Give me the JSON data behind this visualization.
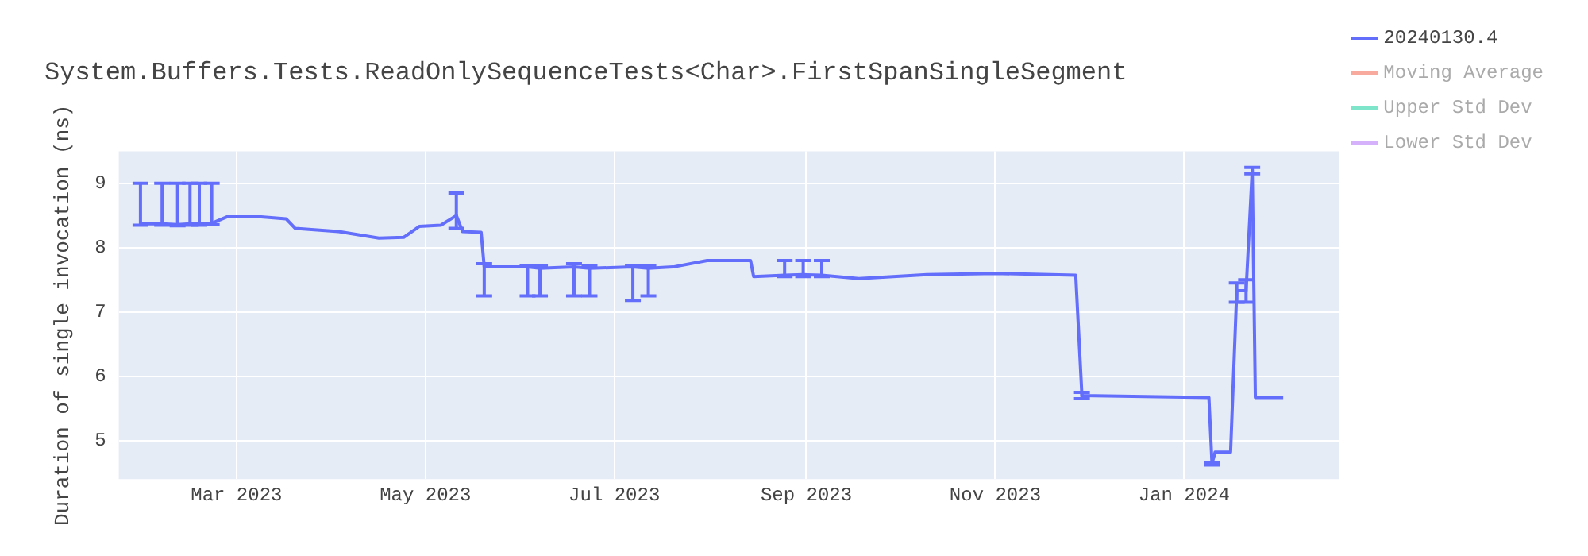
{
  "chart_data": {
    "type": "line",
    "title": "System.Buffers.Tests.ReadOnlySequenceTests<Char>.FirstSpanSingleSegment",
    "ylabel": "Duration of single invocation (ns)",
    "x": [
      "2023-01-29",
      "2023-02-05",
      "2023-02-10",
      "2023-02-14",
      "2023-02-17",
      "2023-02-21",
      "2023-02-26",
      "2023-03-09",
      "2023-03-17",
      "2023-03-20",
      "2023-04-03",
      "2023-04-16",
      "2023-04-24",
      "2023-04-29",
      "2023-05-06",
      "2023-05-11",
      "2023-05-13",
      "2023-05-19",
      "2023-05-20",
      "2023-06-03",
      "2023-06-07",
      "2023-06-18",
      "2023-06-23",
      "2023-07-07",
      "2023-07-12",
      "2023-07-20",
      "2023-07-31",
      "2023-08-14",
      "2023-08-15",
      "2023-08-25",
      "2023-08-31",
      "2023-09-06",
      "2023-09-18",
      "2023-10-10",
      "2023-11-01",
      "2023-11-27",
      "2023-11-29",
      "2024-01-09",
      "2024-01-10",
      "2024-01-11",
      "2024-01-16",
      "2024-01-18",
      "2024-01-21",
      "2024-01-23",
      "2024-01-24",
      "2024-02-02"
    ],
    "series": [
      {
        "name": "20240130.4",
        "color": "#636efa",
        "values": [
          8.37,
          8.37,
          8.36,
          8.37,
          8.38,
          8.38,
          8.48,
          8.48,
          8.45,
          8.3,
          8.25,
          8.15,
          8.16,
          8.33,
          8.35,
          8.5,
          8.25,
          8.24,
          7.7,
          7.7,
          7.68,
          7.7,
          7.68,
          7.7,
          7.68,
          7.7,
          7.8,
          7.8,
          7.55,
          7.57,
          7.58,
          7.57,
          7.52,
          7.58,
          7.6,
          7.57,
          5.7,
          5.67,
          4.64,
          4.82,
          4.82,
          7.33,
          7.33,
          9.21,
          5.67,
          5.67
        ],
        "errors": [
          [
            8.35,
            9.0
          ],
          [
            8.35,
            9.0
          ],
          [
            8.34,
            9.0
          ],
          [
            8.35,
            9.0
          ],
          [
            8.35,
            9.0
          ],
          [
            8.36,
            9.0
          ],
          null,
          null,
          null,
          null,
          null,
          null,
          null,
          null,
          null,
          [
            8.3,
            8.85
          ],
          null,
          null,
          [
            7.25,
            7.75
          ],
          [
            7.25,
            7.72
          ],
          [
            7.25,
            7.72
          ],
          [
            7.25,
            7.75
          ],
          [
            7.25,
            7.72
          ],
          [
            7.18,
            7.72
          ],
          [
            7.25,
            7.72
          ],
          null,
          null,
          null,
          null,
          [
            7.55,
            7.8
          ],
          [
            7.55,
            7.8
          ],
          [
            7.55,
            7.8
          ],
          null,
          null,
          null,
          null,
          [
            5.65,
            5.75
          ],
          null,
          [
            4.62,
            4.66
          ],
          null,
          null,
          [
            7.15,
            7.45
          ],
          [
            7.15,
            7.5
          ],
          [
            9.15,
            9.25
          ],
          null,
          null
        ]
      },
      {
        "name": "Moving Average",
        "color": "#ef553b",
        "values": [
          null,
          null,
          null,
          null,
          null,
          null,
          null,
          null,
          null,
          null,
          null,
          null,
          null,
          null,
          null,
          null,
          null,
          null,
          null,
          null,
          null,
          null,
          null,
          null,
          null,
          null,
          null,
          null,
          null,
          null,
          null,
          null,
          null,
          null,
          null,
          null,
          null,
          null,
          null,
          null,
          null,
          null,
          null,
          null,
          null,
          null
        ]
      },
      {
        "name": "Upper Std Dev",
        "color": "#00cc96",
        "values": [
          null,
          null,
          null,
          null,
          null,
          null,
          null,
          null,
          null,
          null,
          null,
          null,
          null,
          null,
          null,
          null,
          null,
          null,
          null,
          null,
          null,
          null,
          null,
          null,
          null,
          null,
          null,
          null,
          null,
          null,
          null,
          null,
          null,
          null,
          null,
          null,
          null,
          null,
          null,
          null,
          null,
          null,
          null,
          null,
          null,
          null
        ]
      },
      {
        "name": "Lower Std Dev",
        "color": "#ab63fa",
        "values": [
          null,
          null,
          null,
          null,
          null,
          null,
          null,
          null,
          null,
          null,
          null,
          null,
          null,
          null,
          null,
          null,
          null,
          null,
          null,
          null,
          null,
          null,
          null,
          null,
          null,
          null,
          null,
          null,
          null,
          null,
          null,
          null,
          null,
          null,
          null,
          null,
          null,
          null,
          null,
          null,
          null,
          null,
          null,
          null,
          null,
          null
        ]
      }
    ],
    "xlim": [
      "2023-01-22",
      "2024-02-20"
    ],
    "xticks": [
      {
        "value": "2023-03-01",
        "label": "Mar 2023"
      },
      {
        "value": "2023-05-01",
        "label": "May 2023"
      },
      {
        "value": "2023-07-01",
        "label": "Jul 2023"
      },
      {
        "value": "2023-09-01",
        "label": "Sep 2023"
      },
      {
        "value": "2023-11-01",
        "label": "Nov 2023"
      },
      {
        "value": "2024-01-01",
        "label": "Jan 2024"
      }
    ],
    "ylim": [
      4.4,
      9.5
    ],
    "yticks": [
      5,
      6,
      7,
      8,
      9
    ],
    "grid": true,
    "legend": "top right",
    "marker": "none",
    "line_style": "solid"
  }
}
